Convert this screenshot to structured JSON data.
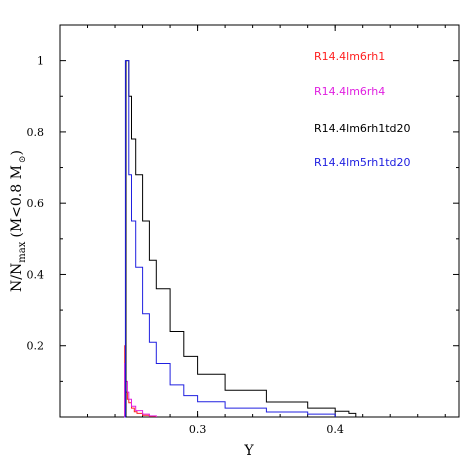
{
  "chart_data": {
    "type": "line",
    "title": "",
    "xlabel": "Y",
    "ylabel": {
      "prefix": "N/N",
      "subscript": "max",
      "condition": "(M<0.8 M",
      "sun_symbol": "⊙",
      "close": ")"
    },
    "xlim": [
      0.2,
      0.49
    ],
    "ylim": [
      0,
      1.1
    ],
    "x_ticks": [
      0.3,
      0.4
    ],
    "x_tick_labels": [
      "0.3",
      "0.4"
    ],
    "y_ticks": [
      0.2,
      0.4,
      0.6,
      0.8,
      1.0
    ],
    "y_tick_labels": [
      "0.2",
      "0.4",
      "0.6",
      "0.8",
      "1"
    ],
    "grid": false,
    "legend_position": "top-right",
    "series": [
      {
        "name": "R14.4lm6rh1",
        "color": "#ff2020",
        "x": [
          0.2465,
          0.247,
          0.248,
          0.249,
          0.25,
          0.252,
          0.254,
          0.256,
          0.26,
          0.265,
          0.27
        ],
        "y": [
          0,
          0.2,
          0.07,
          0.05,
          0.04,
          0.025,
          0.015,
          0.01,
          0.005,
          0.002,
          0.0
        ]
      },
      {
        "name": "R14.4lm6rh4",
        "color": "#e020e0",
        "x": [
          0.2465,
          0.247,
          0.248,
          0.249,
          0.25,
          0.252,
          0.255,
          0.26,
          0.265,
          0.27
        ],
        "y": [
          0,
          0.15,
          0.1,
          0.07,
          0.05,
          0.03,
          0.018,
          0.008,
          0.003,
          0.0
        ]
      },
      {
        "name": "R14.4lm6rh1td20",
        "color": "#000000",
        "x": [
          0.2475,
          0.248,
          0.25,
          0.252,
          0.255,
          0.26,
          0.265,
          0.27,
          0.28,
          0.29,
          0.3,
          0.32,
          0.35,
          0.38,
          0.4,
          0.41,
          0.415
        ],
        "y": [
          0,
          1.0,
          0.9,
          0.78,
          0.68,
          0.55,
          0.44,
          0.36,
          0.24,
          0.17,
          0.12,
          0.075,
          0.042,
          0.025,
          0.016,
          0.01,
          0.0
        ]
      },
      {
        "name": "R14.4lm5rh1td20",
        "color": "#2020e0",
        "x": [
          0.247,
          0.2475,
          0.25,
          0.252,
          0.255,
          0.26,
          0.265,
          0.27,
          0.28,
          0.29,
          0.3,
          0.32,
          0.35,
          0.38,
          0.4
        ],
        "y": [
          0,
          1.0,
          0.68,
          0.55,
          0.42,
          0.29,
          0.21,
          0.15,
          0.09,
          0.06,
          0.043,
          0.025,
          0.014,
          0.008,
          0.0
        ]
      }
    ]
  }
}
